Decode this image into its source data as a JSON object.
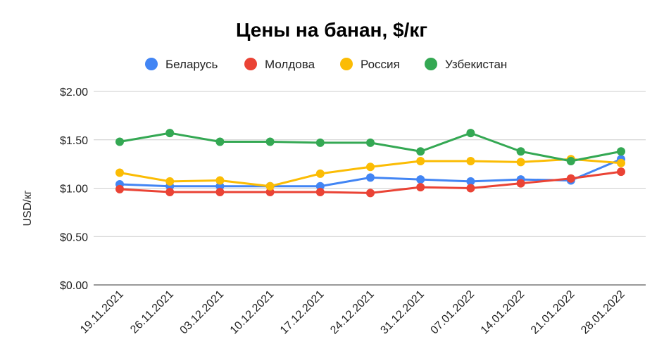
{
  "chart_data": {
    "type": "line",
    "title": "Цены на банан, $/кг",
    "ylabel": "USD/кг",
    "xlabel": "",
    "ylim": [
      0,
      2
    ],
    "yticks": [
      0,
      0.5,
      1.0,
      1.5,
      2.0
    ],
    "ytick_labels": [
      "$0.00",
      "$0.50",
      "$1.00",
      "$1.50",
      "$2.00"
    ],
    "grid": true,
    "legend_position": "top",
    "categories": [
      "19.11.2021",
      "26.11.2021",
      "03.12.2021",
      "10.12.2021",
      "17.12.2021",
      "24.12.2021",
      "31.12.2021",
      "07.01.2022",
      "14.01.2022",
      "21.01.2022",
      "28.01.2022"
    ],
    "series": [
      {
        "name": "Беларусь",
        "color": "#4285F4",
        "values": [
          1.04,
          1.02,
          1.02,
          1.02,
          1.02,
          1.11,
          1.09,
          1.07,
          1.09,
          1.08,
          1.3
        ]
      },
      {
        "name": "Молдова",
        "color": "#EA4335",
        "values": [
          0.99,
          0.96,
          0.96,
          0.96,
          0.96,
          0.95,
          1.01,
          1.0,
          1.05,
          1.1,
          1.17
        ]
      },
      {
        "name": "Россия",
        "color": "#FBBC04",
        "values": [
          1.16,
          1.07,
          1.08,
          1.02,
          1.15,
          1.22,
          1.28,
          1.28,
          1.27,
          1.3,
          1.26
        ]
      },
      {
        "name": "Узбекистан",
        "color": "#34A853",
        "values": [
          1.48,
          1.57,
          1.48,
          1.48,
          1.47,
          1.47,
          1.38,
          1.57,
          1.38,
          1.28,
          1.38
        ]
      }
    ]
  }
}
